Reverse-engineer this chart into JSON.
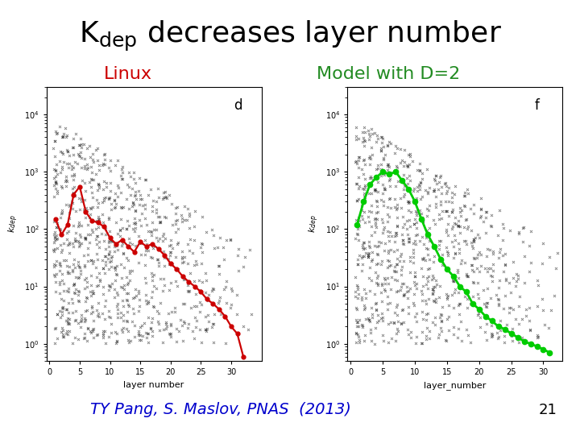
{
  "title_fontsize": 26,
  "subtitle_color_left": "#cc0000",
  "subtitle_color_right": "#228B22",
  "subtitle_fontsize": 16,
  "citation": "TY Pang, S. Maslov, PNAS  (2013)",
  "citation_color": "#0000cc",
  "citation_fontsize": 14,
  "page_number": "21",
  "background_color": "#ffffff",
  "linux_label_d": "d",
  "linux_xlabel": "layer number",
  "linux_ylabel": "k_dep",
  "linux_xticks": [
    0,
    5,
    10,
    15,
    20,
    25,
    30
  ],
  "linux_line_color": "#cc0000",
  "linux_line_x": [
    1,
    2,
    3,
    4,
    5,
    6,
    7,
    8,
    9,
    10,
    11,
    12,
    13,
    14,
    15,
    16,
    17,
    18,
    19,
    20,
    21,
    22,
    23,
    24,
    25,
    26,
    27,
    28,
    29,
    30,
    31,
    32
  ],
  "linux_line_y": [
    150,
    80,
    120,
    400,
    550,
    200,
    140,
    130,
    110,
    70,
    55,
    65,
    50,
    40,
    60,
    50,
    55,
    45,
    35,
    25,
    20,
    15,
    12,
    10,
    8,
    6,
    5,
    4,
    3,
    2,
    1.5,
    0.6
  ],
  "model_label_f": "f",
  "model_xlabel": "layer_number",
  "model_ylabel": "k_dep",
  "model_xticks": [
    0,
    5,
    10,
    15,
    20,
    25,
    30
  ],
  "model_line_color": "#00cc00",
  "model_line_x": [
    1,
    2,
    3,
    4,
    5,
    6,
    7,
    8,
    9,
    10,
    11,
    12,
    13,
    14,
    15,
    16,
    17,
    18,
    19,
    20,
    21,
    22,
    23,
    24,
    25,
    26,
    27,
    28,
    29,
    30,
    31
  ],
  "model_line_y": [
    120,
    300,
    600,
    800,
    1000,
    900,
    1000,
    700,
    500,
    300,
    150,
    80,
    50,
    30,
    20,
    15,
    10,
    8,
    5,
    4,
    3,
    2.5,
    2,
    1.8,
    1.5,
    1.3,
    1.1,
    1.0,
    0.9,
    0.8,
    0.7
  ]
}
